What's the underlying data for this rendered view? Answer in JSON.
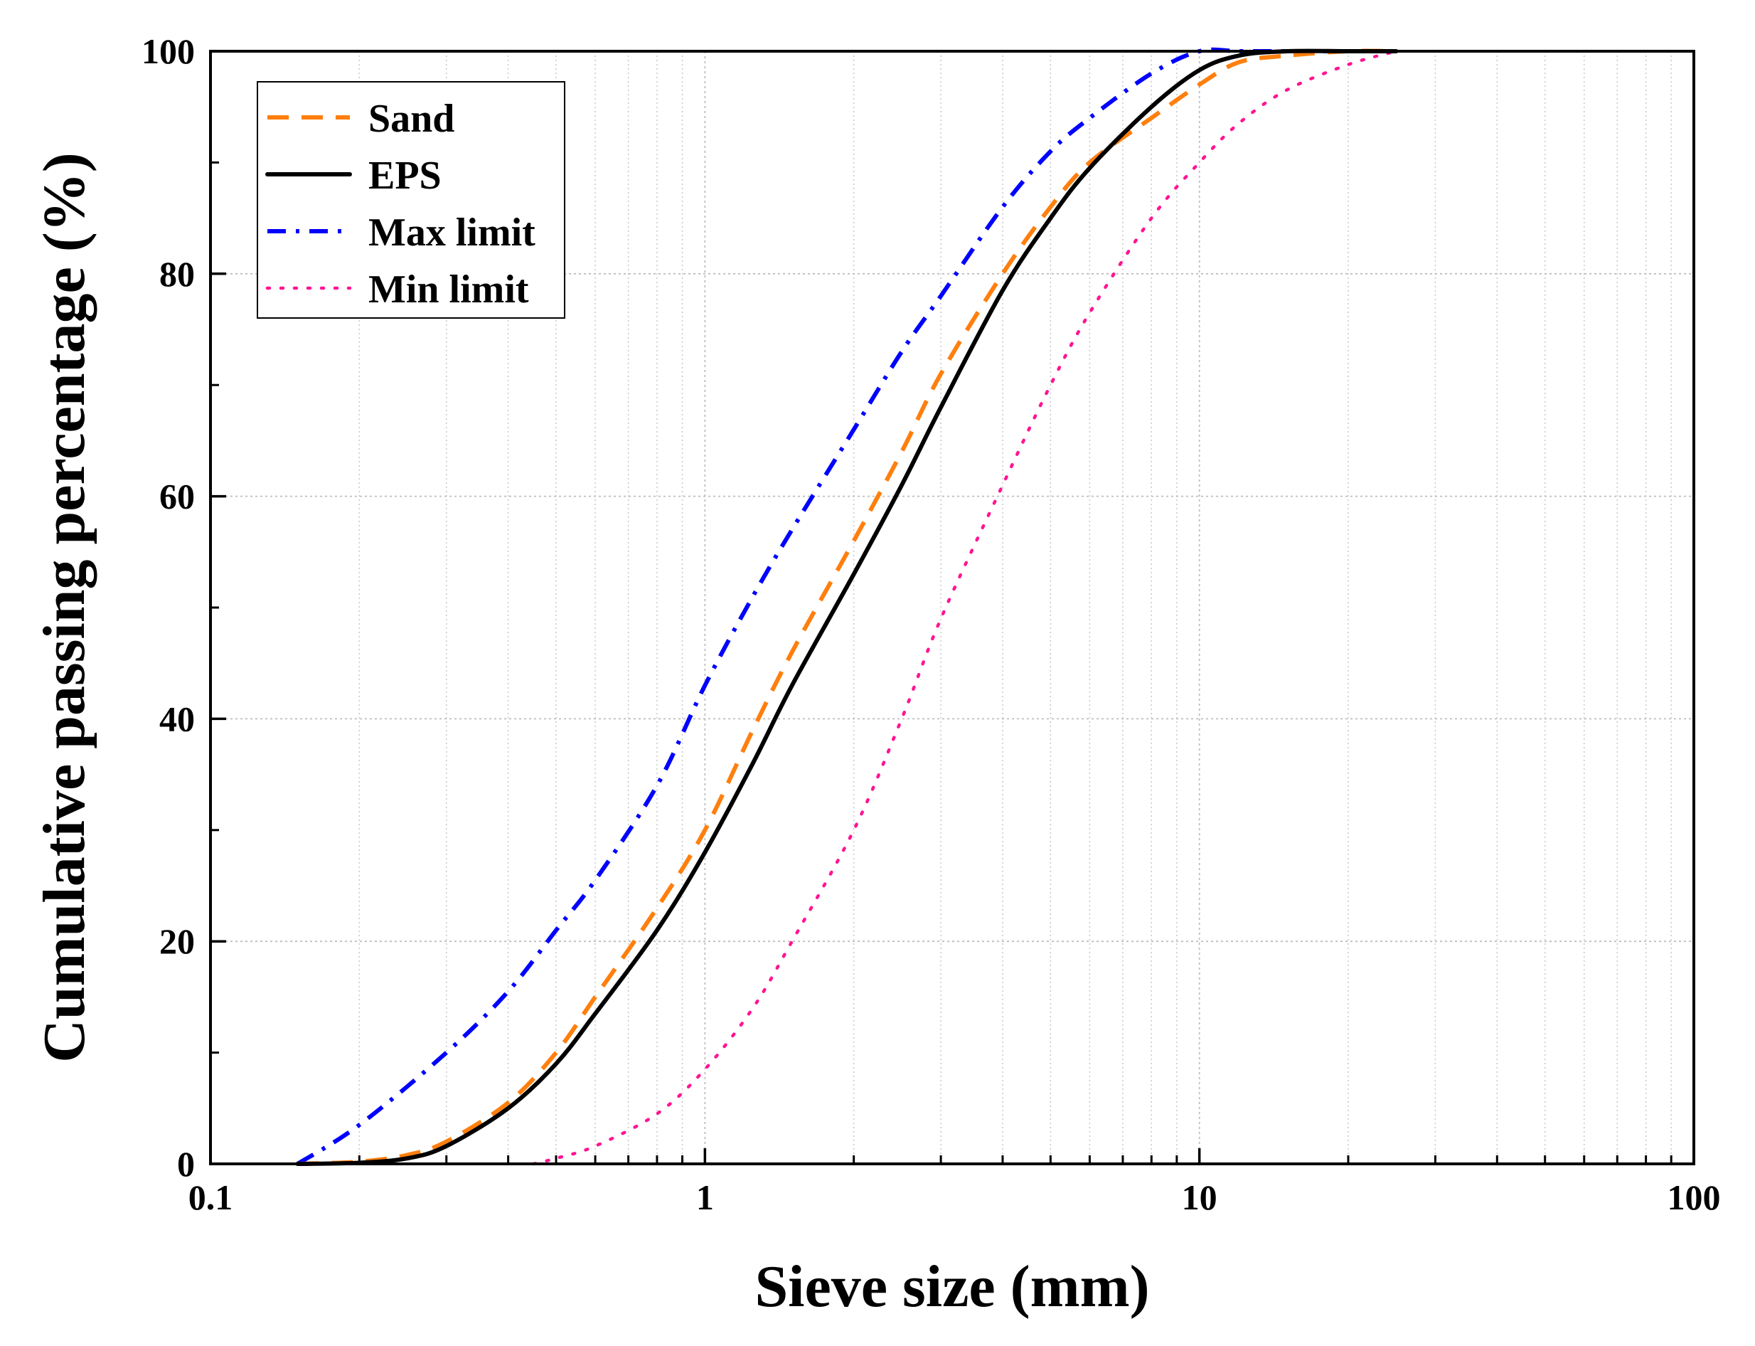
{
  "chart_data": {
    "type": "line",
    "title": "",
    "xlabel": "Sieve size (mm)",
    "ylabel": "Cumulative passing percentage (%)",
    "xscale": "log",
    "xlim": [
      0.1,
      100
    ],
    "ylim": [
      0,
      100
    ],
    "x_ticks": [
      0.1,
      1,
      10,
      100
    ],
    "x_tick_labels": [
      "0.1",
      "1",
      "10",
      "100"
    ],
    "y_ticks": [
      0,
      20,
      40,
      60,
      80,
      100
    ],
    "y_tick_labels": [
      "0",
      "20",
      "40",
      "60",
      "80",
      "100"
    ],
    "grid": true,
    "legend_position": "top-left",
    "series": [
      {
        "name": "Sand",
        "style": "dashed",
        "color": "#ff7f0e",
        "x": [
          0.15,
          0.2,
          0.25,
          0.3,
          0.4,
          0.5,
          0.6,
          0.8,
          1,
          1.25,
          1.5,
          2,
          2.5,
          3,
          4,
          5,
          6,
          8,
          10,
          12,
          15,
          20,
          25
        ],
        "y": [
          0,
          0.2,
          0.8,
          2,
          5.5,
          10,
          15,
          23,
          30,
          39,
          46,
          56,
          64,
          71,
          80,
          86,
          90,
          94,
          97,
          99,
          99.6,
          100,
          100
        ]
      },
      {
        "name": "EPS",
        "style": "solid",
        "color": "#000000",
        "x": [
          0.15,
          0.2,
          0.25,
          0.3,
          0.4,
          0.5,
          0.6,
          0.8,
          1,
          1.25,
          1.5,
          2,
          2.5,
          3,
          4,
          5,
          6,
          8,
          10,
          12,
          15,
          20,
          25
        ],
        "y": [
          0,
          0.1,
          0.5,
          1.6,
          5,
          9,
          13.5,
          21,
          28,
          36,
          43,
          53,
          61,
          68,
          78.5,
          85,
          89.5,
          95,
          98.3,
          99.6,
          100,
          100,
          100
        ]
      },
      {
        "name": "Max limit",
        "style": "dash-dot",
        "color": "#0000ff",
        "x": [
          0.15,
          0.2,
          0.3,
          0.4,
          0.5,
          0.6,
          0.8,
          1,
          1.25,
          1.5,
          2,
          2.5,
          3,
          4,
          5,
          6,
          8,
          10,
          12,
          15,
          20,
          25
        ],
        "y": [
          0,
          3.5,
          10,
          15.5,
          21,
          25.5,
          34,
          43,
          51,
          57,
          66,
          73,
          78,
          86,
          91,
          94,
          98,
          100,
          100,
          100,
          100,
          100
        ]
      },
      {
        "name": "Min limit",
        "style": "dotted",
        "color": "#ff1493",
        "x": [
          0.45,
          0.5,
          0.6,
          0.8,
          1,
          1.25,
          1.5,
          2,
          2.5,
          3,
          4,
          5,
          6,
          8,
          10,
          12,
          15,
          20,
          25
        ],
        "y": [
          0,
          0.5,
          1.6,
          4.5,
          8.5,
          14,
          20,
          30,
          40,
          49,
          61,
          70,
          76.5,
          85,
          90,
          93.5,
          96.5,
          98.8,
          100
        ]
      }
    ]
  }
}
